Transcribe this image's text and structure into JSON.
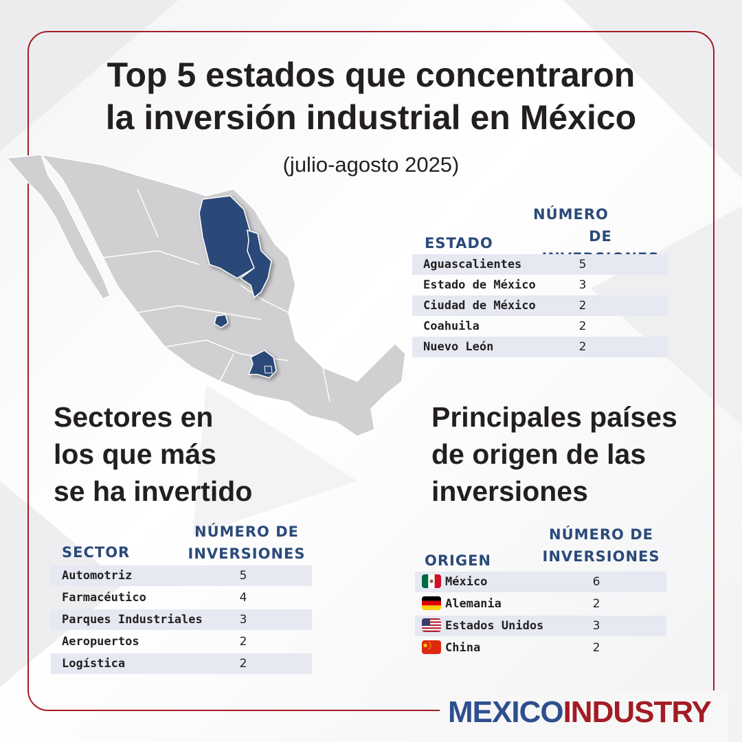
{
  "header": {
    "title_line1": "Top 5 estados que concentraron",
    "title_line2": "la inversión industrial en México",
    "subtitle": "(julio-agosto 2025)"
  },
  "colors": {
    "accent_red": "#a31c25",
    "header_blue": "#2b4a7a",
    "highlight_state": "#2c4a78",
    "row_shade": "#e6e9f2"
  },
  "states_table": {
    "col_estado": "ESTADO",
    "col_num_line1": "NÚMERO",
    "col_num_line2": "DE INVERSIONES",
    "rows": [
      {
        "name": "Aguascalientes",
        "value": "5"
      },
      {
        "name": "Estado de México",
        "value": "3"
      },
      {
        "name": "Ciudad de México",
        "value": "2"
      },
      {
        "name": "Coahuila",
        "value": "2"
      },
      {
        "name": "Nuevo León",
        "value": "2"
      }
    ]
  },
  "sectors": {
    "title_line1": "Sectores en",
    "title_line2": "los que más",
    "title_line3": "se ha invertido",
    "col_sector": "SECTOR",
    "col_num_line1": "NÚMERO DE",
    "col_num_line2": "INVERSIONES",
    "rows": [
      {
        "name": "Automotriz",
        "value": "5"
      },
      {
        "name": "Farmacéutico",
        "value": "4"
      },
      {
        "name": "Parques Industriales",
        "value": "3"
      },
      {
        "name": "Aeropuertos",
        "value": "2"
      },
      {
        "name": "Logística",
        "value": "2"
      }
    ]
  },
  "countries": {
    "title_line1": "Principales países",
    "title_line2": "de origen de las",
    "title_line3": "inversiones",
    "col_origen": "ORIGEN",
    "col_num_line1": "NÚMERO DE",
    "col_num_line2": "INVERSIONES",
    "rows": [
      {
        "name": "México",
        "value": "6",
        "flag": "mexico-flag-icon"
      },
      {
        "name": "Alemania",
        "value": "2",
        "flag": "germany-flag-icon"
      },
      {
        "name": "Estados Unidos",
        "value": "3",
        "flag": "usa-flag-icon"
      },
      {
        "name": "China",
        "value": "2",
        "flag": "china-flag-icon"
      }
    ]
  },
  "brand": {
    "part1": "MEXICO",
    "part2": "INDUSTRY"
  }
}
